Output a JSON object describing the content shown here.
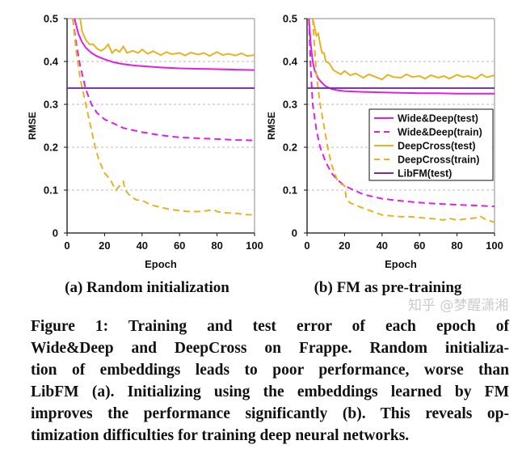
{
  "chart_data": [
    {
      "type": "line",
      "title": "",
      "subcaption": "(a) Random initialization",
      "xlabel": "Epoch",
      "ylabel": "RMSE",
      "xlim": [
        0,
        100
      ],
      "ylim": [
        0,
        0.5
      ],
      "xticks": [
        "0",
        "20",
        "40",
        "60",
        "80",
        "100"
      ],
      "yticks": [
        "0",
        "0.1",
        "0.2",
        "0.3",
        "0.4",
        "0.5"
      ],
      "grid": "horizontal dashed",
      "series": [
        {
          "name": "Wide&Deep(test)",
          "color": "#e020e0",
          "dash": false,
          "x": [
            4,
            6,
            8,
            10,
            13,
            16,
            20,
            25,
            30,
            35,
            40,
            50,
            60,
            70,
            80,
            90,
            100
          ],
          "y": [
            0.5,
            0.465,
            0.445,
            0.432,
            0.42,
            0.412,
            0.405,
            0.398,
            0.394,
            0.391,
            0.389,
            0.386,
            0.384,
            0.383,
            0.382,
            0.381,
            0.38
          ]
        },
        {
          "name": "Wide&Deep(train)",
          "color": "#e020e0",
          "dash": true,
          "x": [
            3,
            5,
            7,
            10,
            13,
            16,
            20,
            25,
            30,
            40,
            50,
            60,
            70,
            80,
            90,
            100
          ],
          "y": [
            0.5,
            0.44,
            0.39,
            0.335,
            0.3,
            0.28,
            0.265,
            0.255,
            0.245,
            0.235,
            0.228,
            0.223,
            0.221,
            0.219,
            0.217,
            0.216
          ]
        },
        {
          "name": "DeepCross(test)",
          "color": "#e6b422",
          "dash": false,
          "x": [
            7,
            8,
            9,
            10,
            12,
            14,
            16,
            18,
            20,
            22,
            24,
            26,
            28,
            30,
            32,
            35,
            38,
            40,
            43,
            46,
            50,
            53,
            56,
            60,
            63,
            66,
            70,
            73,
            76,
            80,
            83,
            86,
            90,
            93,
            96,
            100
          ],
          "y": [
            0.5,
            0.47,
            0.46,
            0.45,
            0.44,
            0.44,
            0.43,
            0.425,
            0.43,
            0.44,
            0.42,
            0.428,
            0.422,
            0.435,
            0.42,
            0.425,
            0.42,
            0.428,
            0.418,
            0.424,
            0.415,
            0.422,
            0.417,
            0.42,
            0.414,
            0.421,
            0.416,
            0.42,
            0.413,
            0.422,
            0.415,
            0.418,
            0.414,
            0.419,
            0.413,
            0.415
          ]
        },
        {
          "name": "DeepCross(train)",
          "color": "#e6b422",
          "dash": true,
          "x": [
            3,
            5,
            7,
            9,
            11,
            13,
            15,
            17,
            20,
            23,
            26,
            28,
            30,
            31,
            34,
            37,
            40,
            45,
            50,
            55,
            60,
            65,
            70,
            75,
            78,
            80,
            85,
            90,
            95,
            100
          ],
          "y": [
            0.5,
            0.42,
            0.36,
            0.32,
            0.28,
            0.24,
            0.2,
            0.17,
            0.14,
            0.125,
            0.1,
            0.11,
            0.12,
            0.1,
            0.085,
            0.077,
            0.076,
            0.065,
            0.06,
            0.055,
            0.052,
            0.05,
            0.05,
            0.052,
            0.055,
            0.05,
            0.047,
            0.046,
            0.043,
            0.042
          ]
        },
        {
          "name": "LibFM(test)",
          "color": "#7030a0",
          "dash": false,
          "x": [
            0,
            100
          ],
          "y": [
            0.338,
            0.338
          ]
        }
      ]
    },
    {
      "type": "line",
      "title": "",
      "subcaption": "(b) FM as pre-training",
      "xlabel": "Epoch",
      "ylabel": "RMSE",
      "xlim": [
        0,
        100
      ],
      "ylim": [
        0,
        0.5
      ],
      "xticks": [
        "0",
        "20",
        "40",
        "60",
        "80",
        "100"
      ],
      "yticks": [
        "0",
        "0.1",
        "0.2",
        "0.3",
        "0.4",
        "0.5"
      ],
      "grid": "horizontal dashed",
      "legend": {
        "position": "center-right",
        "entries": [
          "Wide&Deep(test)",
          "Wide&Deep(train)",
          "DeepCross(test)",
          "DeepCross(train)",
          "LibFM(test)"
        ]
      },
      "series": [
        {
          "name": "Wide&Deep(test)",
          "color": "#e020e0",
          "dash": false,
          "x": [
            1,
            2,
            3,
            4,
            6,
            8,
            10,
            13,
            16,
            20,
            25,
            30,
            40,
            50,
            60,
            70,
            80,
            90,
            100
          ],
          "y": [
            0.5,
            0.44,
            0.4,
            0.38,
            0.36,
            0.35,
            0.342,
            0.336,
            0.333,
            0.331,
            0.33,
            0.329,
            0.328,
            0.327,
            0.326,
            0.326,
            0.325,
            0.325,
            0.325
          ]
        },
        {
          "name": "Wide&Deep(train)",
          "color": "#e020e0",
          "dash": true,
          "x": [
            1,
            2,
            3,
            5,
            7,
            10,
            13,
            16,
            20,
            25,
            30,
            40,
            50,
            60,
            70,
            80,
            90,
            100
          ],
          "y": [
            0.5,
            0.38,
            0.3,
            0.24,
            0.2,
            0.165,
            0.14,
            0.125,
            0.11,
            0.1,
            0.09,
            0.08,
            0.075,
            0.071,
            0.068,
            0.066,
            0.064,
            0.062
          ]
        },
        {
          "name": "DeepCross(test)",
          "color": "#e6b422",
          "dash": false,
          "x": [
            3,
            4,
            5,
            6,
            7,
            8,
            9,
            10,
            12,
            14,
            16,
            18,
            20,
            23,
            26,
            30,
            33,
            36,
            40,
            43,
            46,
            50,
            53,
            56,
            60,
            63,
            66,
            70,
            73,
            76,
            80,
            83,
            86,
            90,
            93,
            96,
            100
          ],
          "y": [
            0.5,
            0.48,
            0.46,
            0.465,
            0.44,
            0.42,
            0.42,
            0.4,
            0.395,
            0.38,
            0.375,
            0.37,
            0.378,
            0.368,
            0.372,
            0.362,
            0.37,
            0.365,
            0.358,
            0.369,
            0.364,
            0.362,
            0.37,
            0.364,
            0.366,
            0.36,
            0.368,
            0.362,
            0.366,
            0.36,
            0.369,
            0.364,
            0.366,
            0.36,
            0.37,
            0.363,
            0.368
          ]
        },
        {
          "name": "DeepCross(train)",
          "color": "#e6b422",
          "dash": true,
          "x": [
            3,
            5,
            7,
            9,
            11,
            13,
            16,
            18,
            20,
            21,
            23,
            26,
            30,
            35,
            40,
            45,
            50,
            55,
            60,
            65,
            70,
            73,
            75,
            80,
            85,
            90,
            92,
            95,
            100
          ],
          "y": [
            0.5,
            0.37,
            0.3,
            0.25,
            0.2,
            0.16,
            0.125,
            0.115,
            0.11,
            0.08,
            0.07,
            0.065,
            0.058,
            0.05,
            0.042,
            0.04,
            0.038,
            0.038,
            0.036,
            0.034,
            0.032,
            0.03,
            0.035,
            0.03,
            0.033,
            0.035,
            0.04,
            0.032,
            0.025
          ]
        },
        {
          "name": "LibFM(test)",
          "color": "#7030a0",
          "dash": false,
          "x": [
            0,
            100
          ],
          "y": [
            0.338,
            0.338
          ]
        }
      ]
    }
  ],
  "caption": {
    "lines": [
      "Figure 1:  Training and test error of each epoch of",
      "Wide&Deep and DeepCross on Frappe.  Random initializa-",
      "tion of embeddings leads to poor performance, worse than",
      "LibFM (a). Initializing using the embeddings learned by FM",
      "improves the performance significantly (b). This reveals op-",
      "timization difficulties for training deep neural networks."
    ]
  },
  "watermark": "知乎 @梦醒潇湘"
}
